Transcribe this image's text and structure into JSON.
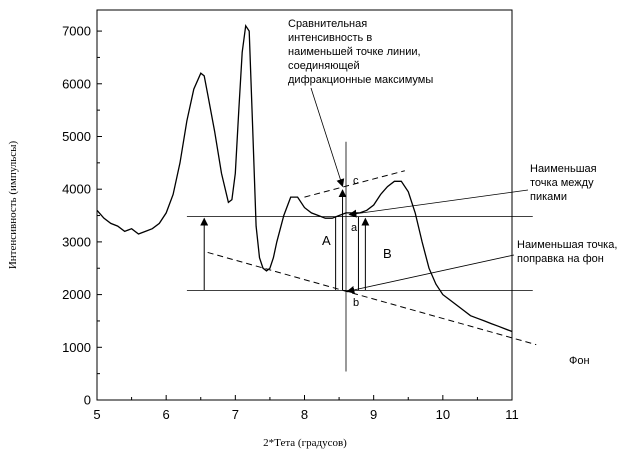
{
  "chart_data": {
    "type": "line",
    "title": "",
    "xlabel": "2*Тета (градусов)",
    "ylabel": "Интенсивность (импульсы)",
    "xlim": [
      5,
      11
    ],
    "ylim": [
      0,
      7400
    ],
    "x_ticks": [
      5,
      6,
      7,
      8,
      9,
      10,
      11
    ],
    "x_tick_labels": [
      "5",
      "6",
      "7",
      "8",
      "9",
      "10",
      "11"
    ],
    "y_ticks": [
      0,
      1000,
      2000,
      3000,
      4000,
      5000,
      6000,
      7000
    ],
    "y_tick_labels": [
      "0",
      "1000",
      "2000",
      "3000",
      "4000",
      "5000",
      "6000",
      "7000"
    ],
    "grid": false,
    "series": [
      {
        "x": [
          5.0,
          5.1,
          5.2,
          5.3,
          5.4,
          5.5,
          5.6,
          5.7,
          5.8,
          5.9,
          6.0,
          6.1,
          6.2,
          6.3,
          6.4,
          6.5,
          6.55,
          6.6,
          6.7,
          6.8,
          6.9,
          6.95,
          7.0,
          7.05,
          7.1,
          7.15,
          7.2,
          7.25,
          7.3,
          7.35,
          7.4,
          7.45,
          7.5,
          7.55,
          7.6,
          7.7,
          7.8,
          7.9,
          8.0,
          8.1,
          8.2,
          8.3,
          8.4,
          8.5,
          8.6,
          8.7,
          8.8,
          8.9,
          9.0,
          9.1,
          9.2,
          9.3,
          9.4,
          9.5,
          9.6,
          9.7,
          9.8,
          9.9,
          10.0,
          10.1,
          10.2,
          10.3,
          10.4,
          10.5,
          10.6,
          10.7,
          10.8,
          10.9,
          11.0
        ],
        "y": [
          3600,
          3450,
          3350,
          3300,
          3200,
          3250,
          3150,
          3200,
          3250,
          3350,
          3550,
          3900,
          4500,
          5300,
          5900,
          6200,
          6150,
          5800,
          5100,
          4300,
          3750,
          3800,
          4300,
          5500,
          6600,
          7100,
          7000,
          5200,
          3300,
          2700,
          2500,
          2450,
          2500,
          2700,
          3000,
          3500,
          3850,
          3850,
          3650,
          3550,
          3500,
          3450,
          3450,
          3500,
          3550,
          3550,
          3550,
          3600,
          3700,
          3900,
          4050,
          4150,
          4150,
          3950,
          3550,
          3000,
          2500,
          2200,
          2000,
          1900,
          1800,
          1700,
          1600,
          1550,
          1500,
          1450,
          1400,
          1350,
          1300
        ]
      }
    ],
    "annotations": {
      "comparative": [
        "Сравнительная",
        "интенсивность в",
        "наименьшей точке линии,",
        "соединяющей",
        "дифракционные максимумы"
      ],
      "lowest_between_peaks": [
        "Наименьшая",
        "точка между",
        "пиками"
      ],
      "lowest_background": [
        "Наименьшая точка,",
        "поправка на фон"
      ],
      "background": "Фон",
      "letters": {
        "c": "c",
        "a": "a",
        "b": "b",
        "A": "A",
        "B": "B"
      }
    },
    "geometry_values": {
      "cursor_x": 8.6,
      "upper_line": {
        "x": [
          8.0,
          9.45
        ],
        "y": [
          3850,
          4350
        ]
      },
      "background_line": {
        "x": [
          6.6,
          11.35
        ],
        "y": [
          2800,
          1050
        ]
      },
      "level_between_peaks": 3480,
      "level_background": 2080,
      "point_c": 4020,
      "point_a": 3480,
      "point_b": 2080
    }
  }
}
